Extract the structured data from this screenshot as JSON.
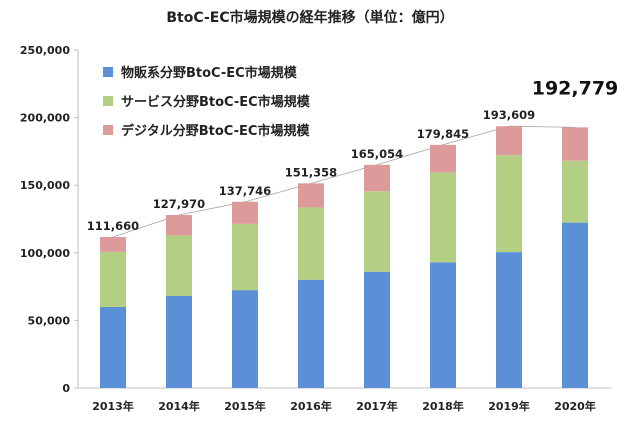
{
  "chart_data": {
    "type": "bar",
    "stacked": true,
    "title": "BtoC-EC市場規模の経年推移（単位：億円）",
    "categories": [
      "2013年",
      "2014年",
      "2015年",
      "2016年",
      "2017年",
      "2018年",
      "2019年",
      "2020年"
    ],
    "series": [
      {
        "name": "物販系分野BtoC-EC市場規模",
        "color": "#5b8fd6",
        "values": [
          59931,
          68043,
          72398,
          80043,
          86008,
          92992,
          100515,
          122333
        ]
      },
      {
        "name": "サービス分野BtoC-EC市場規模",
        "color": "#b3cf84",
        "values": [
          40764,
          44816,
          49014,
          53532,
          59568,
          66471,
          71672,
          45832
        ]
      },
      {
        "name": "デジタル分野BtoC-EC市場規模",
        "color": "#dd9a9a",
        "values": [
          10965,
          15111,
          16334,
          17783,
          19478,
          20382,
          21422,
          24614
        ]
      }
    ],
    "totals": [
      "111,660",
      "127,970",
      "137,746",
      "151,358",
      "165,054",
      "179,845",
      "193,609",
      "192,779"
    ],
    "ylim": [
      0,
      250000
    ],
    "yticks": [
      0,
      50000,
      100000,
      150000,
      200000,
      250000
    ],
    "ytick_labels": [
      "0",
      "50,000",
      "100,000",
      "150,000",
      "200,000",
      "250,000"
    ],
    "xlabel": "",
    "ylabel": "",
    "grid": false,
    "legend": "top-left",
    "total_trend_line": true
  }
}
